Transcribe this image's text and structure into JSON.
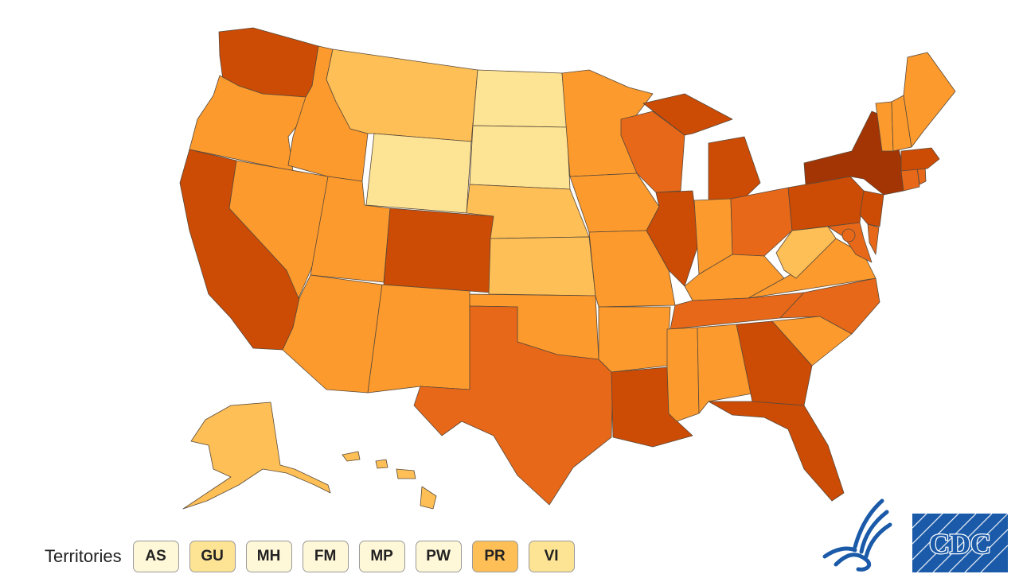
{
  "legend_scale": [
    "#fde394",
    "#fdbf56",
    "#fc9a2d",
    "#e8681a",
    "#cc4b05",
    "#a33505"
  ],
  "states": {
    "WA": "#cc4b05",
    "OR": "#fc9a2d",
    "CA": "#cc4b05",
    "NV": "#fc9a2d",
    "ID": "#fc9a2d",
    "MT": "#fdbf56",
    "WY": "#fde394",
    "UT": "#fc9a2d",
    "AZ": "#fc9a2d",
    "CO": "#cc4b05",
    "NM": "#fc9a2d",
    "ND": "#fde394",
    "SD": "#fde394",
    "NE": "#fdbf56",
    "KS": "#fdbf56",
    "OK": "#fc9a2d",
    "TX": "#e8681a",
    "MN": "#fc9a2d",
    "IA": "#fc9a2d",
    "MO": "#fc9a2d",
    "AR": "#fc9a2d",
    "LA": "#cc4b05",
    "WI": "#e8681a",
    "IL": "#cc4b05",
    "MI": "#cc4b05",
    "IN": "#fc9a2d",
    "OH": "#e8681a",
    "KY": "#fc9a2d",
    "TN": "#e8681a",
    "MS": "#fc9a2d",
    "AL": "#fc9a2d",
    "GA": "#cc4b05",
    "FL": "#cc4b05",
    "SC": "#fc9a2d",
    "NC": "#e8681a",
    "VA": "#fc9a2d",
    "WV": "#fdbf56",
    "PA": "#cc4b05",
    "NY": "#a33505",
    "NJ": "#cc4b05",
    "DE": "#e8681a",
    "MD": "#e8681a",
    "DC": "#e8681a",
    "CT": "#e8681a",
    "RI": "#e8681a",
    "MA": "#cc4b05",
    "VT": "#fc9a2d",
    "NH": "#fc9a2d",
    "ME": "#fc9a2d",
    "AK": "#fdbf56",
    "HI": "#fdbf56"
  },
  "territories": {
    "label": "Territories",
    "items": [
      {
        "code": "AS",
        "color": "#fff8d8"
      },
      {
        "code": "GU",
        "color": "#fde394"
      },
      {
        "code": "MH",
        "color": "#fff8d8"
      },
      {
        "code": "FM",
        "color": "#fff8d8"
      },
      {
        "code": "MP",
        "color": "#fff8d8"
      },
      {
        "code": "PW",
        "color": "#fff8d8"
      },
      {
        "code": "PR",
        "color": "#fdbf56"
      },
      {
        "code": "VI",
        "color": "#fde394"
      }
    ]
  },
  "logos": {
    "hhs_icon": "hhs-eagle-icon",
    "cdc_icon": "cdc-logo-icon",
    "cdc_text": "CDC",
    "cdc_color": "#1a5aa8"
  }
}
